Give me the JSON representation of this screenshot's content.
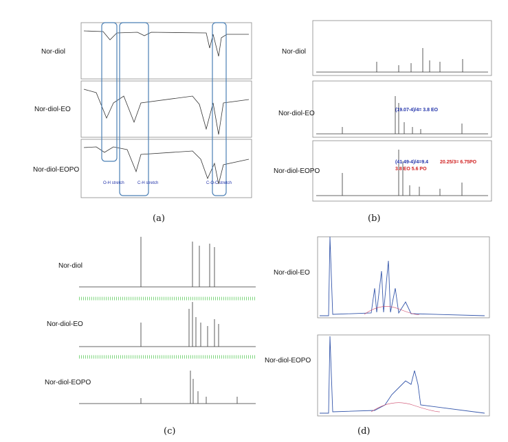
{
  "panels": [
    {
      "caption": "(a)",
      "samples": [
        "Nor-diol",
        "Nor-diol-EO",
        "Nor-diol-EOPO"
      ],
      "annotations": [
        "O-H stretch",
        "C-H stretch",
        "C-O-C stretch"
      ]
    },
    {
      "caption": "(b)",
      "samples": [
        "Nor-diol",
        "Nor-diol-EO",
        "Nor-diol-EOPO"
      ],
      "annotations": [
        "(19.07-4)/4= 3.8 EO",
        "(41.49-4)/4=9.4",
        "3.8 EO 5.6 PO",
        "20.25/3= 6.75PO"
      ]
    },
    {
      "caption": "(c)",
      "samples": [
        "Nor-diol",
        "Nor-diol-EO",
        "Nor-diol-EOPO"
      ]
    },
    {
      "caption": "(d)",
      "samples": [
        "Nor-diol-EO",
        "Nor-diol-EOPO"
      ]
    }
  ]
}
